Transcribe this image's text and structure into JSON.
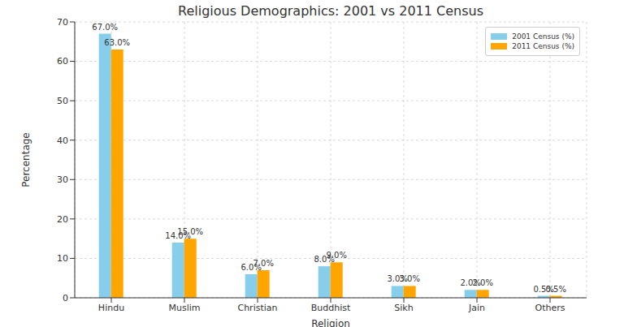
{
  "chart_data": {
    "type": "bar",
    "title": "Religious Demographics: 2001 vs 2011 Census",
    "x_label": "Religion",
    "y_label": "Percentage",
    "categories": [
      "Hindu",
      "Muslim",
      "Christian",
      "Buddhist",
      "Sikh",
      "Jain",
      "Others"
    ],
    "series": [
      {
        "name": "2001 Census (%)",
        "color": "#87ceeb",
        "values": [
          67,
          14,
          6,
          8,
          3,
          2,
          0.5
        ],
        "value_labels": [
          "67.0%",
          "14.0%",
          "6.0%",
          "8.0%",
          "3.0%",
          "2.0%",
          "0.5%"
        ]
      },
      {
        "name": "2011 Census (%)",
        "color": "#ffa500",
        "values": [
          63,
          15,
          7,
          9,
          3,
          2,
          0.5
        ],
        "value_labels": [
          "63.0%",
          "15.0%",
          "7.0%",
          "9.0%",
          "3.0%",
          "2.0%",
          "0.5%"
        ]
      }
    ],
    "ylim": [
      0,
      70
    ],
    "yticks": [
      0,
      10,
      20,
      30,
      40,
      50,
      60,
      70
    ],
    "grid": true,
    "legend": "upper right",
    "data_labels": true
  }
}
